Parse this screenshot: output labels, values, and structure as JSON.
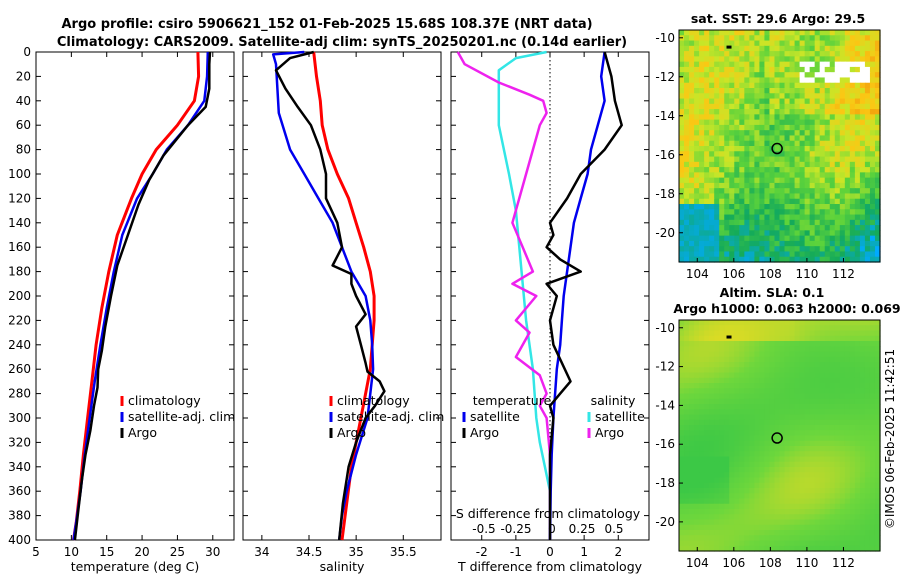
{
  "title_line1": "Argo profile: csiro 5906621_152 01-Feb-2025 15.68S 108.37E (NRT data)",
  "title_line2": "Climatology: CARS2009. Satellite-adj clim: synTS_20250201.nc (0.14d earlier)",
  "sst_title": "sat. SST: 29.6 Argo: 29.5",
  "sla_title1": "Altim. SLA: 0.1",
  "sla_title2": "Argo h1000: 0.063 h2000: 0.069",
  "credit": "©IMOS 06-Feb-2025 11:42:51",
  "colors": {
    "climatology": "#ff0000",
    "satellite": "#0000ee",
    "argo": "#000000",
    "t_diff_sat": "#0000ee",
    "s_diff_sat": "#33e6e6",
    "s_diff_argo": "#ee22ee"
  },
  "chart_data": [
    {
      "type": "line",
      "name": "temperature",
      "xlabel": "temperature (deg C)",
      "ylabel": "",
      "xlim": [
        5,
        33
      ],
      "ylim": [
        400,
        0
      ],
      "xticks": [
        "5",
        "10",
        "15",
        "20",
        "25",
        "30"
      ],
      "xtick_values": [
        5,
        10,
        15,
        20,
        25,
        30
      ],
      "yticks": [
        "0",
        "20",
        "40",
        "60",
        "80",
        "100",
        "120",
        "140",
        "160",
        "180",
        "200",
        "220",
        "240",
        "260",
        "280",
        "300",
        "320",
        "340",
        "360",
        "380",
        "400"
      ],
      "ytick_values": [
        0,
        20,
        40,
        60,
        80,
        100,
        120,
        140,
        160,
        180,
        200,
        220,
        240,
        260,
        280,
        300,
        320,
        340,
        360,
        380,
        400
      ],
      "legend": [
        "climatology",
        "satellite-adj. clim",
        "Argo"
      ],
      "series": [
        {
          "name": "climatology",
          "color": "#ff0000",
          "x": [
            27.9,
            28.0,
            27.4,
            25.0,
            22.0,
            20.0,
            18.5,
            16.5,
            15.3,
            14.3,
            13.5,
            12.9,
            12.3,
            11.7,
            11.2,
            10.7,
            10.3
          ],
          "depth": [
            0,
            20,
            40,
            60,
            80,
            100,
            120,
            150,
            180,
            210,
            240,
            270,
            300,
            330,
            360,
            385,
            400
          ]
        },
        {
          "name": "satellite-adj. clim",
          "color": "#0000ee",
          "x": [
            29.3,
            29.2,
            28.8,
            26.5,
            23.5,
            21.5,
            19.3,
            17.2,
            16.0,
            15.0,
            14.1,
            13.3,
            12.6,
            11.9,
            11.3,
            10.7,
            10.3
          ],
          "depth": [
            0,
            20,
            40,
            60,
            80,
            100,
            120,
            150,
            180,
            210,
            240,
            270,
            300,
            330,
            360,
            385,
            400
          ]
        },
        {
          "name": "Argo",
          "color": "#000000",
          "x": [
            29.6,
            29.5,
            29.5,
            29.0,
            26.5,
            23.0,
            21.0,
            19.5,
            18.0,
            16.5,
            15.6,
            14.8,
            14.3,
            13.8,
            13.7,
            13.2,
            12.7,
            12.0,
            11.5,
            11.0,
            10.5
          ],
          "depth": [
            0,
            10,
            30,
            45,
            60,
            85,
            105,
            125,
            150,
            175,
            200,
            225,
            245,
            260,
            275,
            290,
            310,
            330,
            350,
            375,
            400
          ]
        }
      ]
    },
    {
      "type": "line",
      "name": "salinity",
      "xlabel": "salinity",
      "ylabel": "",
      "xlim": [
        33.8,
        35.9
      ],
      "ylim": [
        400,
        0
      ],
      "xticks": [
        "34",
        "34.5",
        "35",
        "35.5"
      ],
      "xtick_values": [
        34,
        34.5,
        35,
        35.5
      ],
      "legend": [
        "climatology",
        "satellite-adj. clim",
        "Argo"
      ],
      "series": [
        {
          "name": "climatology",
          "color": "#ff0000",
          "x": [
            34.55,
            34.58,
            34.62,
            34.64,
            34.7,
            34.8,
            34.92,
            35.0,
            35.08,
            35.15,
            35.19,
            35.19,
            35.15,
            35.05,
            34.95,
            34.9,
            34.85
          ],
          "depth": [
            0,
            20,
            40,
            60,
            80,
            100,
            120,
            140,
            160,
            180,
            200,
            220,
            260,
            300,
            340,
            370,
            400
          ]
        },
        {
          "name": "satellite-adj. clim",
          "color": "#0000ee",
          "x": [
            34.45,
            34.12,
            34.15,
            34.18,
            34.3,
            34.45,
            34.6,
            34.75,
            34.85,
            34.95,
            35.1,
            35.15,
            35.17,
            35.18,
            35.12,
            35.0,
            34.9,
            34.85,
            34.82
          ],
          "depth": [
            0,
            2,
            10,
            50,
            80,
            100,
            120,
            140,
            160,
            180,
            200,
            220,
            240,
            260,
            300,
            330,
            360,
            380,
            400
          ]
        },
        {
          "name": "Argo",
          "color": "#000000",
          "x": [
            34.55,
            34.3,
            34.15,
            34.25,
            34.38,
            34.52,
            34.62,
            34.68,
            34.68,
            34.8,
            34.85,
            34.75,
            34.95,
            34.95,
            35.0,
            35.1,
            35.0,
            35.05,
            35.1,
            35.12,
            35.25,
            35.3,
            35.2,
            35.1,
            35.0,
            34.92,
            34.86,
            34.82
          ],
          "depth": [
            0,
            5,
            15,
            30,
            45,
            60,
            80,
            100,
            120,
            140,
            160,
            175,
            182,
            190,
            200,
            215,
            225,
            240,
            255,
            262,
            270,
            278,
            290,
            300,
            320,
            340,
            370,
            400
          ]
        }
      ]
    },
    {
      "type": "line",
      "name": "difference-from-climatology",
      "xlabel": "T difference from climatology",
      "xlabel_top": "S difference from climatology",
      "xlim": [
        -2.9,
        2.9
      ],
      "ylim": [
        400,
        0
      ],
      "xticks": [
        "-2",
        "-1",
        "0",
        "1",
        "2"
      ],
      "xtick_values": [
        -2,
        -1,
        0,
        1,
        2
      ],
      "top_ticks": [
        "-0.5",
        "-0.25",
        "0",
        "0.25",
        "0.5"
      ],
      "legend_t": {
        "heading": "temperature",
        "items": [
          "satellite",
          "Argo"
        ]
      },
      "legend_s": {
        "heading": "salinity",
        "items": [
          "satellite",
          "Argo"
        ]
      },
      "series": [
        {
          "name": "temperature satellite",
          "color": "#0000ee",
          "x": [
            1.6,
            1.5,
            1.6,
            1.4,
            1.2,
            1.1,
            0.9,
            0.7,
            0.6,
            0.5,
            0.4,
            0.35,
            0.3,
            0.2,
            0.15,
            0.1,
            0.05,
            0.02,
            0.0
          ],
          "depth": [
            0,
            20,
            40,
            60,
            80,
            100,
            120,
            140,
            160,
            180,
            200,
            220,
            240,
            260,
            280,
            300,
            330,
            360,
            400
          ]
        },
        {
          "name": "temperature Argo",
          "color": "#000000",
          "x": [
            1.6,
            1.8,
            1.9,
            2.1,
            1.6,
            0.9,
            0.5,
            0.0,
            0.1,
            -0.1,
            0.3,
            0.9,
            -0.1,
            0.2,
            0.0,
            0.1,
            0.6,
            0.3,
            0.0,
            0.1,
            0.0,
            0.0,
            0.0
          ],
          "depth": [
            0,
            20,
            40,
            60,
            80,
            100,
            120,
            140,
            150,
            160,
            170,
            180,
            190,
            200,
            220,
            240,
            270,
            280,
            290,
            300,
            330,
            360,
            400
          ]
        },
        {
          "name": "salinity satellite",
          "color": "#33e6e6",
          "x": [
            -0.1,
            -1.0,
            -1.5,
            -1.5,
            -1.2,
            -1.0,
            -0.9,
            -0.8,
            -0.7,
            -0.6,
            -0.5,
            -0.45,
            -0.4,
            -0.3,
            -0.15,
            0.0,
            0.0,
            0.0
          ],
          "depth": [
            0,
            5,
            15,
            60,
            100,
            130,
            160,
            190,
            220,
            240,
            260,
            280,
            300,
            320,
            340,
            360,
            380,
            400
          ]
        },
        {
          "name": "salinity Argo",
          "color": "#ee22ee",
          "x": [
            -2.7,
            -2.5,
            -1.5,
            -0.6,
            -0.2,
            -0.1,
            -0.3,
            -0.7,
            -1.1,
            -0.8,
            -0.5,
            -1.1,
            -0.4,
            -1.0,
            -0.6,
            -1.0,
            -0.3,
            -0.1,
            -0.3,
            -0.1,
            0.0,
            0.0
          ],
          "depth": [
            0,
            10,
            25,
            35,
            40,
            50,
            60,
            100,
            140,
            160,
            180,
            190,
            200,
            220,
            230,
            250,
            265,
            280,
            290,
            300,
            330,
            400
          ]
        }
      ]
    },
    {
      "type": "heatmap",
      "name": "sst-map",
      "title": "sat. SST: 29.6 Argo: 29.5",
      "xlim": [
        103,
        114
      ],
      "ylim": [
        -21.5,
        -9.6
      ],
      "xticks": [
        "104",
        "106",
        "108",
        "110",
        "112"
      ],
      "xtick_values": [
        104,
        106,
        108,
        110,
        112
      ],
      "yticks": [
        "-10",
        "-12",
        "-14",
        "-16",
        "-18",
        "-20"
      ],
      "ytick_values": [
        -10,
        -12,
        -14,
        -16,
        -18,
        -20
      ],
      "marker": {
        "lon": 108.37,
        "lat": -15.68
      }
    },
    {
      "type": "heatmap",
      "name": "sla-map",
      "title": "Altim. SLA: 0.1",
      "xlim": [
        103,
        114
      ],
      "ylim": [
        -21.5,
        -9.6
      ],
      "xticks": [
        "104",
        "106",
        "108",
        "110",
        "112"
      ],
      "xtick_values": [
        104,
        106,
        108,
        110,
        112
      ],
      "yticks": [
        "-10",
        "-12",
        "-14",
        "-16",
        "-18",
        "-20"
      ],
      "ytick_values": [
        -10,
        -12,
        -14,
        -16,
        -18,
        -20
      ],
      "marker": {
        "lon": 108.37,
        "lat": -15.68
      }
    }
  ]
}
